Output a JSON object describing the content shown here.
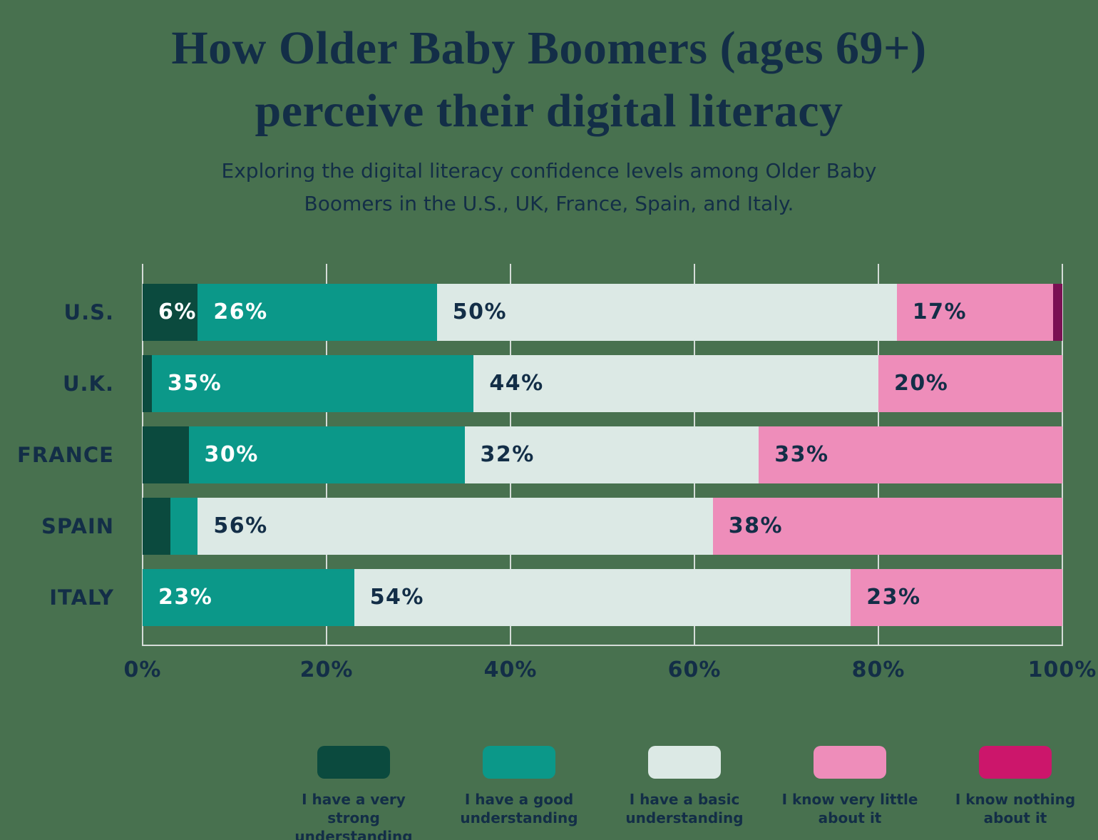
{
  "title": {
    "line1": "How Older Baby Boomers (ages 69+)",
    "line2": "perceive their digital literacy"
  },
  "subtitle": {
    "line1": "Exploring the digital literacy confidence levels among Older Baby",
    "line2": "Boomers in the U.S., UK, France, Spain, and Italy."
  },
  "colors": {
    "background": "#48714F",
    "text_navy": "#132E47",
    "gridline": "#D5DCD8"
  },
  "chart_data": {
    "type": "bar",
    "orientation": "horizontal",
    "stacked": true,
    "grid": "vertical",
    "legend_position": "bottom",
    "xlim": [
      0,
      100
    ],
    "x_ticks": [
      "0%",
      "20%",
      "40%",
      "60%",
      "80%",
      "100%"
    ],
    "label_min_value": 6,
    "categories": [
      "U.S.",
      "U.K.",
      "FRANCE",
      "SPAIN",
      "ITALY"
    ],
    "series": [
      {
        "key": "very-strong",
        "name": "I have a very strong understanding",
        "bar_color": "#0B4A3E",
        "legend_color": "#0B4A3E",
        "label_color": "#FFFFFF",
        "values": [
          6,
          1,
          5,
          3,
          0
        ]
      },
      {
        "key": "good",
        "name": "I have a good understanding",
        "bar_color": "#0B9889",
        "legend_color": "#0B9889",
        "label_color": "#FFFFFF",
        "values": [
          26,
          35,
          30,
          3,
          23
        ]
      },
      {
        "key": "basic",
        "name": "I have a basic understanding",
        "bar_color": "#DCE9E5",
        "legend_color": "#DCE9E5",
        "label_color": "#132E47",
        "values": [
          50,
          44,
          32,
          56,
          54
        ]
      },
      {
        "key": "very-little",
        "name": "I know very little about it",
        "bar_color": "#EE8DBA",
        "legend_color": "#EE8DBA",
        "label_color": "#132E47",
        "values": [
          17,
          20,
          33,
          38,
          23
        ]
      },
      {
        "key": "nothing",
        "name": "I know nothing about it",
        "bar_color": "#7A1053",
        "legend_color": "#CC166B",
        "label_color": "#FFFFFF",
        "values": [
          1,
          0,
          0,
          0,
          0
        ]
      }
    ]
  }
}
